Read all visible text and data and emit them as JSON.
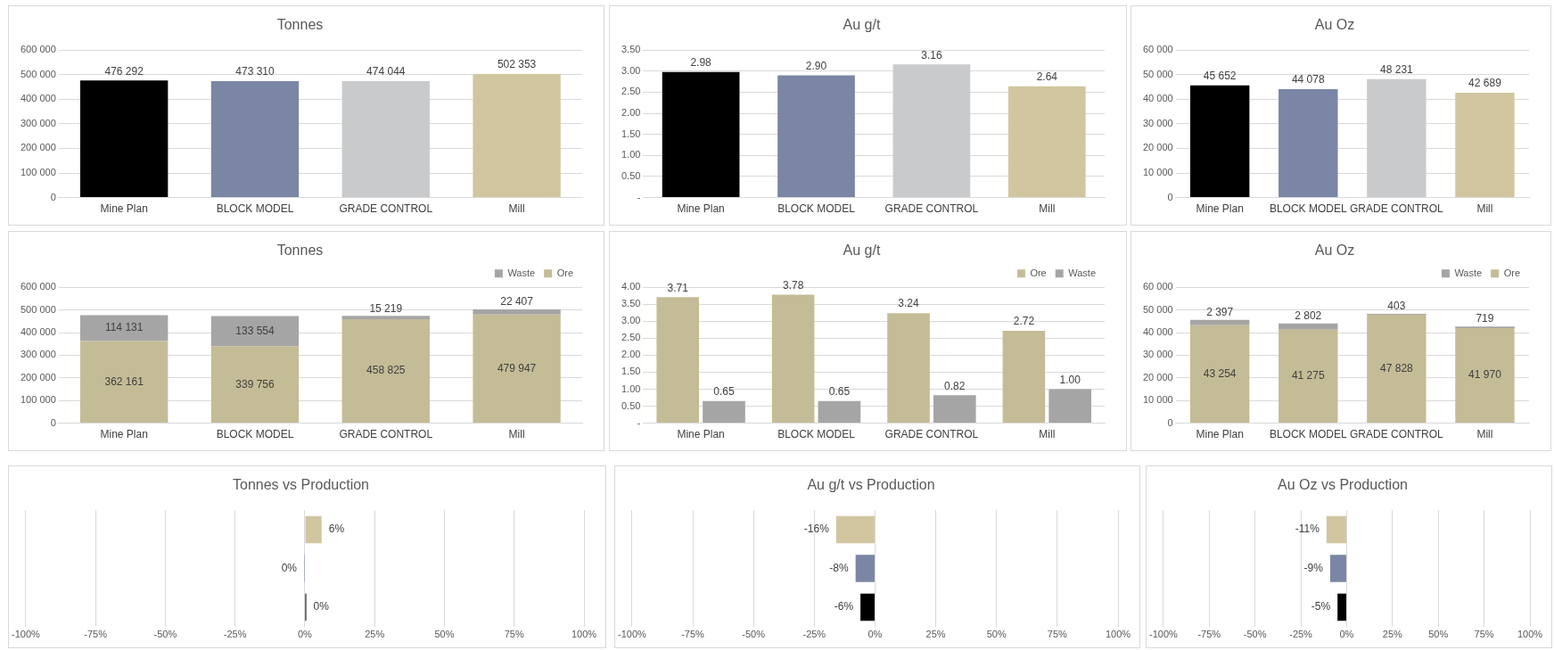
{
  "chart_data": [
    {
      "type": "bar",
      "title": "Tonnes",
      "categories": [
        "Mine Plan",
        "BLOCK MODEL",
        "GRADE CONTROL",
        "Mill"
      ],
      "series": [
        {
          "colors": [
            "#000000",
            "#7a86a4",
            "#c9cacc",
            "#d1c6a0"
          ],
          "values": [
            476292,
            473310,
            474044,
            502353
          ],
          "value_labels": [
            "476 292",
            "473 310",
            "474 044",
            "502 353"
          ]
        }
      ],
      "ylim": [
        0,
        600000
      ],
      "yticks": [
        {
          "value": 0,
          "label": "0"
        },
        {
          "value": 100000,
          "label": "100 000"
        },
        {
          "value": 200000,
          "label": "200 000"
        },
        {
          "value": 300000,
          "label": "300 000"
        },
        {
          "value": 400000,
          "label": "400 000"
        },
        {
          "value": 500000,
          "label": "500 000"
        },
        {
          "value": 600000,
          "label": "600 000"
        }
      ],
      "grid": "y"
    },
    {
      "type": "bar",
      "title": "Au g/t",
      "categories": [
        "Mine Plan",
        "BLOCK MODEL",
        "GRADE CONTROL",
        "Mill"
      ],
      "series": [
        {
          "colors": [
            "#000000",
            "#7a86a4",
            "#c9cacc",
            "#d1c6a0"
          ],
          "values": [
            2.98,
            2.9,
            3.16,
            2.64
          ],
          "value_labels": [
            "2.98",
            "2.90",
            "3.16",
            "2.64"
          ]
        }
      ],
      "ylim": [
        0,
        3.5
      ],
      "yticks": [
        {
          "value": 0,
          "label": "-"
        },
        {
          "value": 0.5,
          "label": "0.50"
        },
        {
          "value": 1,
          "label": "1.00"
        },
        {
          "value": 1.5,
          "label": "1.50"
        },
        {
          "value": 2,
          "label": "2.00"
        },
        {
          "value": 2.5,
          "label": "2.50"
        },
        {
          "value": 3,
          "label": "3.00"
        },
        {
          "value": 3.5,
          "label": "3.50"
        }
      ],
      "grid": "y"
    },
    {
      "type": "bar",
      "title": "Au Oz",
      "categories": [
        "Mine Plan",
        "BLOCK MODEL",
        "GRADE CONTROL",
        "Mill"
      ],
      "series": [
        {
          "colors": [
            "#000000",
            "#7a86a4",
            "#c9cacc",
            "#d1c6a0"
          ],
          "values": [
            45652,
            44078,
            48231,
            42689
          ],
          "value_labels": [
            "45 652",
            "44 078",
            "48 231",
            "42 689"
          ]
        }
      ],
      "ylim": [
        0,
        60000
      ],
      "yticks": [
        {
          "value": 0,
          "label": "0"
        },
        {
          "value": 10000,
          "label": "10 000"
        },
        {
          "value": 20000,
          "label": "20 000"
        },
        {
          "value": 30000,
          "label": "30 000"
        },
        {
          "value": 40000,
          "label": "40 000"
        },
        {
          "value": 50000,
          "label": "50 000"
        },
        {
          "value": 60000,
          "label": "60 000"
        }
      ],
      "grid": "y"
    },
    {
      "type": "bar",
      "title": "Tonnes",
      "categories": [
        "Mine Plan",
        "BLOCK MODEL",
        "GRADE CONTROL",
        "Mill"
      ],
      "stacked": true,
      "legend": "top right",
      "series": [
        {
          "name": "Ore",
          "color": "#c4bc96",
          "values": [
            362161,
            339756,
            458825,
            479947
          ],
          "value_labels": [
            "362 161",
            "339 756",
            "458 825",
            "479 947"
          ]
        },
        {
          "name": "Waste",
          "color": "#a5a5a5",
          "values": [
            114131,
            133554,
            15219,
            22407
          ],
          "value_labels": [
            "114 131",
            "133 554",
            "15 219",
            "22 407"
          ]
        }
      ],
      "ylim": [
        0,
        600000
      ],
      "yticks": [
        {
          "value": 0,
          "label": "0"
        },
        {
          "value": 100000,
          "label": "100 000"
        },
        {
          "value": 200000,
          "label": "200 000"
        },
        {
          "value": 300000,
          "label": "300 000"
        },
        {
          "value": 400000,
          "label": "400 000"
        },
        {
          "value": 500000,
          "label": "500 000"
        },
        {
          "value": 600000,
          "label": "600 000"
        }
      ],
      "grid": "y"
    },
    {
      "type": "bar",
      "title": "Au g/t",
      "categories": [
        "Mine Plan",
        "BLOCK MODEL",
        "GRADE CONTROL",
        "Mill"
      ],
      "legend": "top right",
      "series": [
        {
          "name": "Ore",
          "color": "#c4bc96",
          "values": [
            3.71,
            3.78,
            3.24,
            2.72
          ],
          "value_labels": [
            "3.71",
            "3.78",
            "3.24",
            "2.72"
          ]
        },
        {
          "name": "Waste",
          "color": "#a5a5a5",
          "values": [
            0.65,
            0.65,
            0.82,
            1.0
          ],
          "value_labels": [
            "0.65",
            "0.65",
            "0.82",
            "1.00"
          ]
        }
      ],
      "ylim": [
        0,
        4
      ],
      "yticks": [
        {
          "value": 0,
          "label": "-"
        },
        {
          "value": 0.5,
          "label": "0.50"
        },
        {
          "value": 1,
          "label": "1.00"
        },
        {
          "value": 1.5,
          "label": "1.50"
        },
        {
          "value": 2,
          "label": "2.00"
        },
        {
          "value": 2.5,
          "label": "2.50"
        },
        {
          "value": 3,
          "label": "3.00"
        },
        {
          "value": 3.5,
          "label": "3.50"
        },
        {
          "value": 4,
          "label": "4.00"
        }
      ],
      "grid": "y"
    },
    {
      "type": "bar",
      "title": "Au Oz",
      "categories": [
        "Mine Plan",
        "BLOCK MODEL",
        "GRADE CONTROL",
        "Mill"
      ],
      "stacked": true,
      "legend": "top right",
      "series": [
        {
          "name": "Ore",
          "color": "#c4bc96",
          "values": [
            43254,
            41275,
            47828,
            41970
          ],
          "value_labels": [
            "43 254",
            "41 275",
            "47 828",
            "41 970"
          ]
        },
        {
          "name": "Waste",
          "color": "#a5a5a5",
          "values": [
            2397,
            2802,
            403,
            719
          ],
          "value_labels": [
            "2 397",
            "2 802",
            "403",
            "719"
          ]
        }
      ],
      "ylim": [
        0,
        60000
      ],
      "yticks": [
        {
          "value": 0,
          "label": "0"
        },
        {
          "value": 10000,
          "label": "10 000"
        },
        {
          "value": 20000,
          "label": "20 000"
        },
        {
          "value": 30000,
          "label": "30 000"
        },
        {
          "value": 40000,
          "label": "40 000"
        },
        {
          "value": 50000,
          "label": "50 000"
        },
        {
          "value": 60000,
          "label": "60 000"
        }
      ],
      "grid": "y"
    },
    {
      "type": "bar",
      "title": "Tonnes vs Production",
      "orientation": "horizontal",
      "categories": [
        null,
        null,
        null
      ],
      "tick_labels": "x",
      "series": [
        {
          "colors": [
            "#d1c6a0",
            "#7a86a4",
            "#000000"
          ],
          "values": [
            6,
            -0.3,
            0.5
          ],
          "value_labels": [
            "6%",
            "0%",
            "0%"
          ]
        }
      ],
      "xlim": [
        -100,
        100
      ],
      "xticks": [
        {
          "value": -100,
          "label": "-100%"
        },
        {
          "value": -75,
          "label": "-75%"
        },
        {
          "value": -50,
          "label": "-50%"
        },
        {
          "value": -25,
          "label": "-25%"
        },
        {
          "value": 0,
          "label": "0%"
        },
        {
          "value": 25,
          "label": "25%"
        },
        {
          "value": 50,
          "label": "50%"
        },
        {
          "value": 75,
          "label": "75%"
        },
        {
          "value": 100,
          "label": "100%"
        }
      ],
      "grid": "x"
    },
    {
      "type": "bar",
      "title": "Au g/t vs Production",
      "orientation": "horizontal",
      "categories": [
        null,
        null,
        null
      ],
      "tick_labels": "x",
      "series": [
        {
          "colors": [
            "#d1c6a0",
            "#7a86a4",
            "#000000"
          ],
          "values": [
            -16,
            -8,
            -6
          ],
          "value_labels": [
            "-16%",
            "-8%",
            "-6%"
          ]
        }
      ],
      "xlim": [
        -100,
        100
      ],
      "xticks": [
        {
          "value": -100,
          "label": "-100%"
        },
        {
          "value": -75,
          "label": "-75%"
        },
        {
          "value": -50,
          "label": "-50%"
        },
        {
          "value": -25,
          "label": "-25%"
        },
        {
          "value": 0,
          "label": "0%"
        },
        {
          "value": 25,
          "label": "25%"
        },
        {
          "value": 50,
          "label": "50%"
        },
        {
          "value": 75,
          "label": "75%"
        },
        {
          "value": 100,
          "label": "100%"
        }
      ],
      "grid": "x"
    },
    {
      "type": "bar",
      "title": "Au Oz vs Production",
      "orientation": "horizontal",
      "categories": [
        null,
        null,
        null
      ],
      "tick_labels": "x",
      "series": [
        {
          "colors": [
            "#d1c6a0",
            "#7a86a4",
            "#000000"
          ],
          "values": [
            -11,
            -9,
            -5
          ],
          "value_labels": [
            "-11%",
            "-9%",
            "-5%"
          ]
        }
      ],
      "xlim": [
        -100,
        100
      ],
      "xticks": [
        {
          "value": -100,
          "label": "-100%"
        },
        {
          "value": -75,
          "label": "-75%"
        },
        {
          "value": -50,
          "label": "-50%"
        },
        {
          "value": -25,
          "label": "-25%"
        },
        {
          "value": 0,
          "label": "0%"
        },
        {
          "value": 25,
          "label": "25%"
        },
        {
          "value": 50,
          "label": "50%"
        },
        {
          "value": 75,
          "label": "75%"
        },
        {
          "value": 100,
          "label": "100%"
        }
      ],
      "grid": "x"
    }
  ]
}
